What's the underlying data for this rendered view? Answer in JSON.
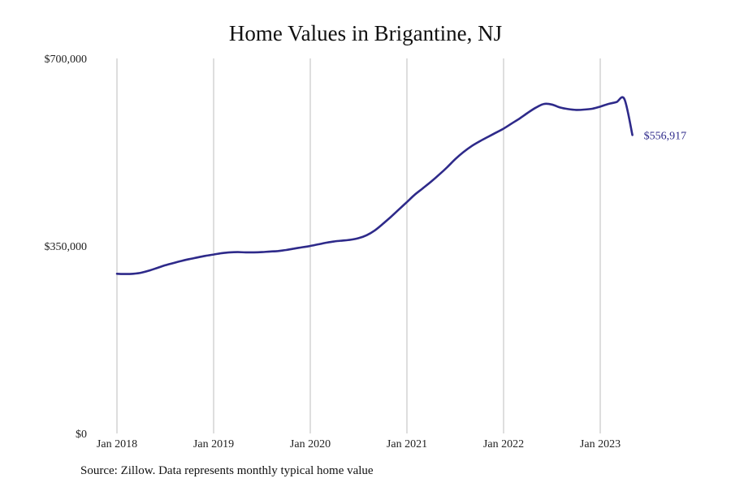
{
  "chart_data": {
    "type": "line",
    "title": "Home Values in Brigantine, NJ",
    "xlabel": "",
    "ylabel": "",
    "ylim": [
      0,
      700000
    ],
    "y_ticks": [
      {
        "value": 0,
        "label": "$0"
      },
      {
        "value": 350000,
        "label": "$350,000"
      },
      {
        "value": 700000,
        "label": "$700,000"
      }
    ],
    "x_ticks": [
      {
        "value": 2018.0,
        "label": "Jan 2018"
      },
      {
        "value": 2019.0,
        "label": "Jan 2019"
      },
      {
        "value": 2020.0,
        "label": "Jan 2020"
      },
      {
        "value": 2021.0,
        "label": "Jan 2021"
      },
      {
        "value": 2022.0,
        "label": "Jan 2022"
      },
      {
        "value": 2023.0,
        "label": "Jan 2023"
      }
    ],
    "xlim": [
      2018.0,
      2024.0
    ],
    "grid": "vertical",
    "color": "#2e2a8a",
    "end_label": "$556,917",
    "series": [
      {
        "x": [
          2018.0,
          2018.083,
          2018.167,
          2018.25,
          2018.333,
          2018.417,
          2018.5,
          2018.583,
          2018.667,
          2018.75,
          2018.833,
          2018.917,
          2019.0,
          2019.083,
          2019.167,
          2019.25,
          2019.333,
          2019.417,
          2019.5,
          2019.583,
          2019.667,
          2019.75,
          2019.833,
          2019.917,
          2020.0,
          2020.083,
          2020.167,
          2020.25,
          2020.333,
          2020.417,
          2020.5,
          2020.583,
          2020.667,
          2020.75,
          2020.833,
          2020.917,
          2021.0,
          2021.083,
          2021.167,
          2021.25,
          2021.333,
          2021.417,
          2021.5,
          2021.583,
          2021.667,
          2021.75,
          2021.833,
          2021.917,
          2022.0,
          2022.083,
          2022.167,
          2022.25,
          2022.333,
          2022.417,
          2022.5,
          2022.583,
          2022.667,
          2022.75,
          2022.833,
          2022.917,
          2023.0,
          2023.083,
          2023.167,
          2023.25,
          2023.333
        ],
        "values": [
          298000,
          297500,
          298000,
          300000,
          304000,
          309000,
          314000,
          318000,
          322000,
          325500,
          328500,
          331500,
          334000,
          336500,
          338000,
          338500,
          338000,
          338000,
          338500,
          339500,
          340500,
          342500,
          345000,
          347500,
          350000,
          353000,
          356000,
          358500,
          360000,
          361500,
          364500,
          370000,
          379000,
          391000,
          404000,
          418000,
          432000,
          446000,
          458000,
          470000,
          483000,
          497000,
          512000,
          525000,
          536000,
          545000,
          553000,
          561000,
          569000,
          578500,
          588000,
          598500,
          608000,
          615000,
          614000,
          608500,
          605500,
          604000,
          604500,
          606000,
          610000,
          615000,
          618500,
          624000,
          557000
        ]
      }
    ]
  },
  "source_note": "Source: Zillow. Data represents monthly typical home value"
}
